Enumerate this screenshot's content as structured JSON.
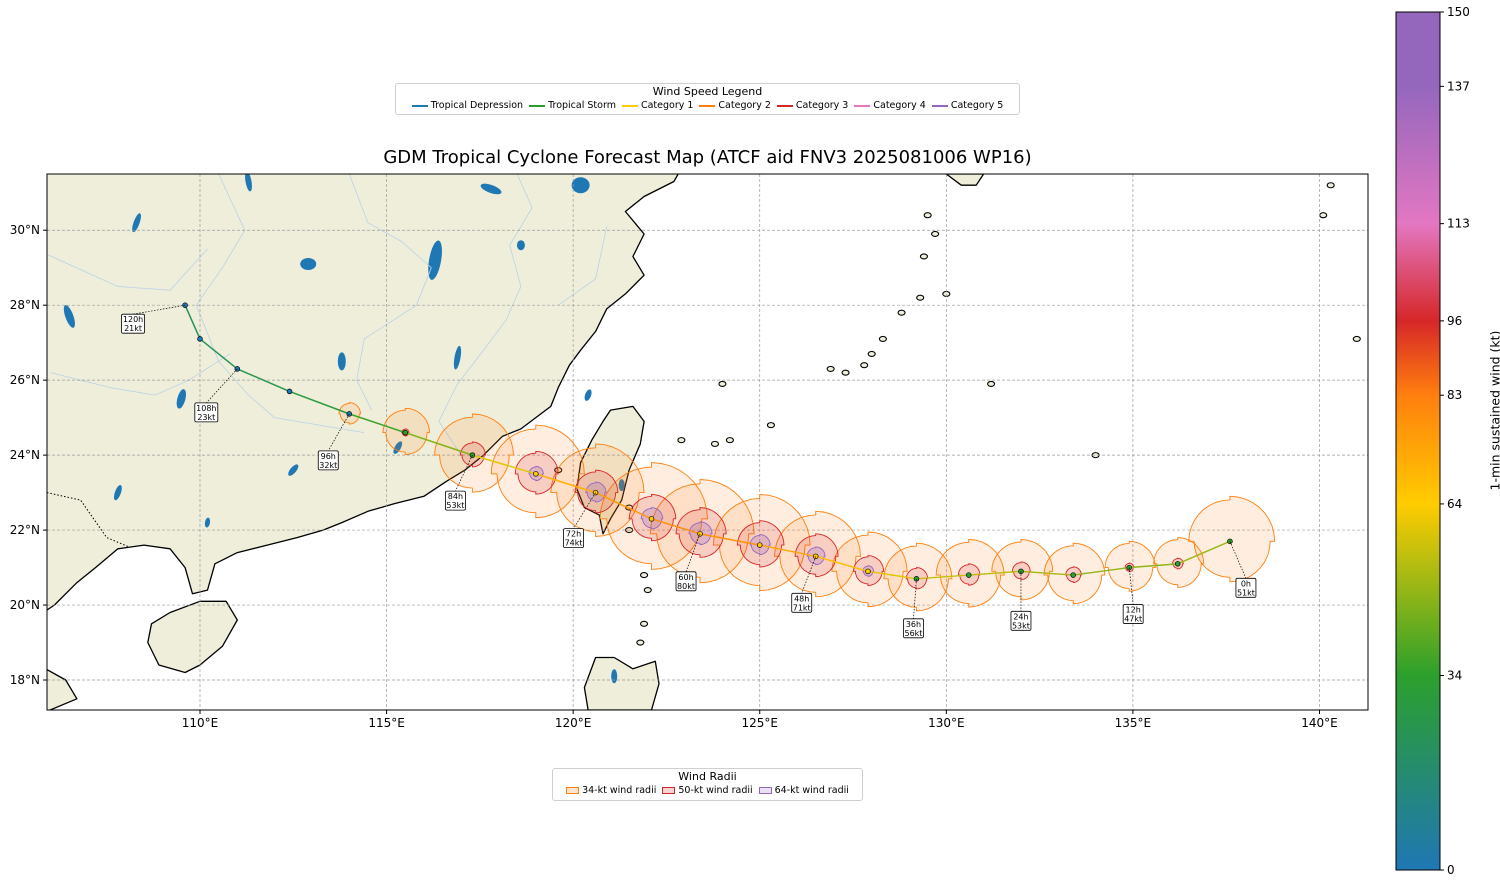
{
  "title": "GDM Tropical Cyclone Forecast Map (ATCF aid FNV3 2025081006 WP16)",
  "wind_legend": {
    "title": "Wind Speed Legend",
    "items": [
      {
        "label": "Tropical Depression",
        "color": "#1f77b4"
      },
      {
        "label": "Tropical Storm",
        "color": "#2ca02c"
      },
      {
        "label": "Category 1",
        "color": "#ffcc00"
      },
      {
        "label": "Category 2",
        "color": "#ff7f0e"
      },
      {
        "label": "Category 3",
        "color": "#d62728"
      },
      {
        "label": "Category 4",
        "color": "#e377c2"
      },
      {
        "label": "Category 5",
        "color": "#9467bd"
      }
    ]
  },
  "radii_legend": {
    "title": "Wind Radii",
    "items": [
      {
        "label": "34-kt wind radii",
        "color": "#ff7f0e"
      },
      {
        "label": "50-kt wind radii",
        "color": "#d62728"
      },
      {
        "label": "64-kt wind radii",
        "color": "#9467bd"
      }
    ]
  },
  "colorbar": {
    "label": "1-min sustained wind (kt)",
    "ticks": [
      0,
      34,
      64,
      83,
      96,
      113,
      137,
      150
    ]
  },
  "chart_data": {
    "type": "map",
    "x_ticks": [
      "110°E",
      "115°E",
      "120°E",
      "125°E",
      "130°E",
      "135°E",
      "140°E"
    ],
    "y_ticks": [
      "18°N",
      "20°N",
      "22°N",
      "24°N",
      "26°N",
      "28°N",
      "30°N"
    ],
    "lon_range": [
      105.9,
      141.3
    ],
    "lat_range": [
      17.2,
      31.5
    ],
    "grid": true,
    "track": [
      {
        "hour": 0,
        "lon": 137.6,
        "lat": 21.7,
        "wind": 51,
        "r34": 1.2,
        "r50": 0,
        "r64": 0
      },
      {
        "hour": 6,
        "lon": 136.2,
        "lat": 21.1,
        "wind": 49,
        "r34": 0.7,
        "r50": 0.15,
        "r64": 0
      },
      {
        "hour": 12,
        "lon": 134.9,
        "lat": 21.0,
        "wind": 47,
        "r34": 0.7,
        "r50": 0.12,
        "r64": 0
      },
      {
        "hour": 18,
        "lon": 133.4,
        "lat": 20.8,
        "wind": 50,
        "r34": 0.85,
        "r50": 0.22,
        "r64": 0
      },
      {
        "hour": 24,
        "lon": 132.0,
        "lat": 20.9,
        "wind": 53,
        "r34": 0.85,
        "r50": 0.25,
        "r64": 0
      },
      {
        "hour": 30,
        "lon": 130.6,
        "lat": 20.8,
        "wind": 55,
        "r34": 0.95,
        "r50": 0.3,
        "r64": 0
      },
      {
        "hour": 36,
        "lon": 129.2,
        "lat": 20.7,
        "wind": 56,
        "r34": 0.95,
        "r50": 0.3,
        "r64": 0
      },
      {
        "hour": 42,
        "lon": 127.9,
        "lat": 20.9,
        "wind": 64,
        "r34": 1.05,
        "r50": 0.42,
        "r64": 0.15
      },
      {
        "hour": 48,
        "lon": 126.5,
        "lat": 21.3,
        "wind": 71,
        "r34": 1.2,
        "r50": 0.6,
        "r64": 0.25
      },
      {
        "hour": 54,
        "lon": 125.0,
        "lat": 21.6,
        "wind": 76,
        "r34": 1.35,
        "r50": 0.65,
        "r64": 0.28
      },
      {
        "hour": 60,
        "lon": 123.4,
        "lat": 21.9,
        "wind": 80,
        "r34": 1.45,
        "r50": 0.7,
        "r64": 0.32
      },
      {
        "hour": 66,
        "lon": 122.1,
        "lat": 22.3,
        "wind": 78,
        "r34": 1.5,
        "r50": 0.65,
        "r64": 0.3
      },
      {
        "hour": 72,
        "lon": 120.6,
        "lat": 23.0,
        "wind": 74,
        "r34": 1.3,
        "r50": 0.6,
        "r64": 0.28
      },
      {
        "hour": 78,
        "lon": 119.0,
        "lat": 23.5,
        "wind": 67,
        "r34": 1.3,
        "r50": 0.6,
        "r64": 0.2
      },
      {
        "hour": 84,
        "lon": 117.3,
        "lat": 24.0,
        "wind": 53,
        "r34": 1.1,
        "r50": 0.35,
        "r64": 0
      },
      {
        "hour": 90,
        "lon": 115.5,
        "lat": 24.6,
        "wind": 41,
        "r34": 0.65,
        "r50": 0.1,
        "r64": 0
      },
      {
        "hour": 96,
        "lon": 114.0,
        "lat": 25.1,
        "wind": 32,
        "r34": 0.3,
        "r50": 0,
        "r64": 0
      },
      {
        "hour": 102,
        "lon": 112.4,
        "lat": 25.7,
        "wind": 28,
        "r34": 0,
        "r50": 0,
        "r64": 0
      },
      {
        "hour": 108,
        "lon": 111.0,
        "lat": 26.3,
        "wind": 23,
        "r34": 0,
        "r50": 0,
        "r64": 0
      },
      {
        "hour": 114,
        "lon": 110.0,
        "lat": 27.1,
        "wind": 22,
        "r34": 0,
        "r50": 0,
        "r64": 0
      },
      {
        "hour": 120,
        "lon": 109.6,
        "lat": 28.0,
        "wind": 21,
        "r34": 0,
        "r50": 0,
        "r64": 0
      }
    ],
    "labels": [
      {
        "hour": 0,
        "text1": "0h",
        "text2": "51kt"
      },
      {
        "hour": 12,
        "text1": "12h",
        "text2": "47kt"
      },
      {
        "hour": 24,
        "text1": "24h",
        "text2": "53kt"
      },
      {
        "hour": 36,
        "text1": "36h",
        "text2": "56kt"
      },
      {
        "hour": 48,
        "text1": "48h",
        "text2": "71kt"
      },
      {
        "hour": 60,
        "text1": "60h",
        "text2": "80kt"
      },
      {
        "hour": 72,
        "text1": "72h",
        "text2": "74kt"
      },
      {
        "hour": 84,
        "text1": "84h",
        "text2": "53kt"
      },
      {
        "hour": 96,
        "text1": "96h",
        "text2": "32kt"
      },
      {
        "hour": 108,
        "text1": "108h",
        "text2": "23kt"
      },
      {
        "hour": 120,
        "text1": "120h",
        "text2": "21kt"
      }
    ]
  }
}
